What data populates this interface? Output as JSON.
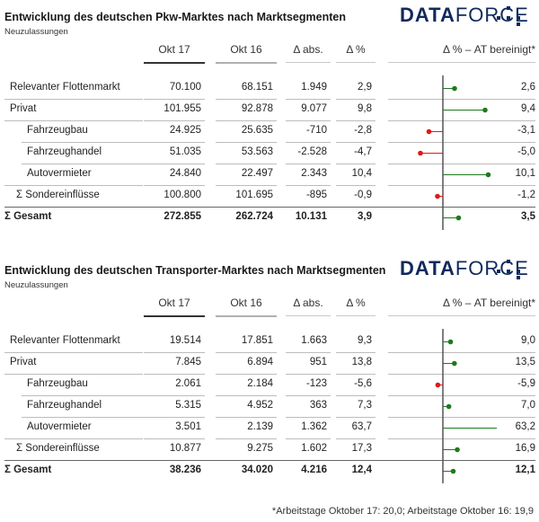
{
  "brand": {
    "name_a": "DATA",
    "name_b": "FORCE",
    "color": "#0f2a5c"
  },
  "colors": {
    "positive": "#1e7a1e",
    "negative": "#e01818",
    "axis": "#555555",
    "current_line": "#333333",
    "prev_line": "#b0b0b0"
  },
  "columns": {
    "current": "Okt 17",
    "previous": "Okt 16",
    "abs": "Δ abs.",
    "pct": "Δ %",
    "adj": "Δ % – AT bereinigt*"
  },
  "footnote": "*Arbeitstage Oktober 17: 20,0; Arbeitstage Oktober 16: 19,9",
  "chart_data": [
    {
      "type": "table",
      "title": "Entwicklung des deutschen Pkw-Marktes nach Marktsegmenten",
      "subtitle": "Neuzulassungen",
      "rows": [
        {
          "label": "Relevanter Flottenmarkt",
          "indent": 0,
          "current": "70.100",
          "previous": "68.151",
          "abs": "1.949",
          "pct": "2,9",
          "adj_label": "2,6",
          "adj": 2.6,
          "bold": false
        },
        {
          "label": "Privat",
          "indent": 0,
          "current": "101.955",
          "previous": "92.878",
          "abs": "9.077",
          "pct": "9,8",
          "adj_label": "9,4",
          "adj": 9.4,
          "bold": false
        },
        {
          "label": "Fahrzeugbau",
          "indent": 1,
          "current": "24.925",
          "previous": "25.635",
          "abs": "-710",
          "pct": "-2,8",
          "adj_label": "-3,1",
          "adj": -3.1,
          "bold": false
        },
        {
          "label": "Fahrzeughandel",
          "indent": 1,
          "current": "51.035",
          "previous": "53.563",
          "abs": "-2.528",
          "pct": "-4,7",
          "adj_label": "-5,0",
          "adj": -5.0,
          "bold": false
        },
        {
          "label": "Autovermieter",
          "indent": 1,
          "current": "24.840",
          "previous": "22.497",
          "abs": "2.343",
          "pct": "10,4",
          "adj_label": "10,1",
          "adj": 10.1,
          "bold": false
        },
        {
          "label": "Σ Sondereinflüsse",
          "indent": 0.5,
          "current": "100.800",
          "previous": "101.695",
          "abs": "-895",
          "pct": "-0,9",
          "adj_label": "-1,2",
          "adj": -1.2,
          "bold": false
        },
        {
          "label": "Σ Gesamt",
          "indent": 0,
          "current": "272.855",
          "previous": "262.724",
          "abs": "10.131",
          "pct": "3,9",
          "adj_label": "3,5",
          "adj": 3.5,
          "bold": true
        }
      ]
    },
    {
      "type": "table",
      "title": "Entwicklung des deutschen Transporter-Marktes nach Marktsegmenten",
      "subtitle": "Neuzulassungen",
      "rows": [
        {
          "label": "Relevanter Flottenmarkt",
          "indent": 0,
          "current": "19.514",
          "previous": "17.851",
          "abs": "1.663",
          "pct": "9,3",
          "adj_label": "9,0",
          "adj": 9.0,
          "bold": false
        },
        {
          "label": "Privat",
          "indent": 0,
          "current": "7.845",
          "previous": "6.894",
          "abs": "951",
          "pct": "13,8",
          "adj_label": "13,5",
          "adj": 13.5,
          "bold": false
        },
        {
          "label": "Fahrzeugbau",
          "indent": 1,
          "current": "2.061",
          "previous": "2.184",
          "abs": "-123",
          "pct": "-5,6",
          "adj_label": "-5,9",
          "adj": -5.9,
          "bold": false
        },
        {
          "label": "Fahrzeughandel",
          "indent": 1,
          "current": "5.315",
          "previous": "4.952",
          "abs": "363",
          "pct": "7,3",
          "adj_label": "7,0",
          "adj": 7.0,
          "bold": false
        },
        {
          "label": "Autovermieter",
          "indent": 1,
          "current": "3.501",
          "previous": "2.139",
          "abs": "1.362",
          "pct": "63,7",
          "adj_label": "63,2",
          "adj": 63.2,
          "bold": false
        },
        {
          "label": "Σ Sondereinflüsse",
          "indent": 0.5,
          "current": "10.877",
          "previous": "9.275",
          "abs": "1.602",
          "pct": "17,3",
          "adj_label": "16,9",
          "adj": 16.9,
          "bold": false
        },
        {
          "label": "Σ Gesamt",
          "indent": 0,
          "current": "38.236",
          "previous": "34.020",
          "abs": "4.216",
          "pct": "12,4",
          "adj_label": "12,1",
          "adj": 12.1,
          "bold": true
        }
      ]
    }
  ]
}
